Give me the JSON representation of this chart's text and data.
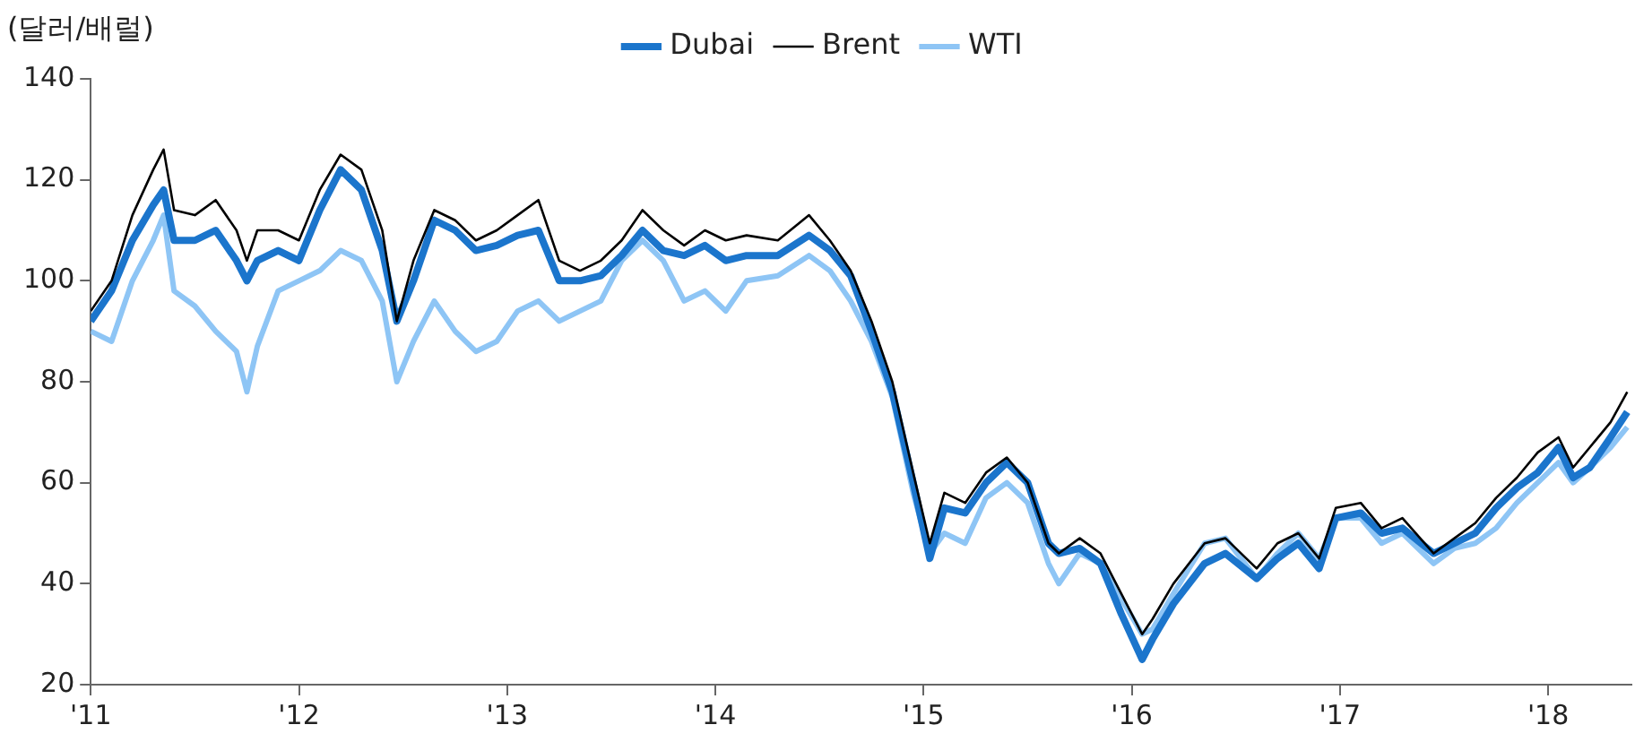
{
  "chart_data": {
    "type": "line",
    "ylabel": "(달러/배럴)",
    "x": [
      2011.0,
      2011.1,
      2011.2,
      2011.3,
      2011.35,
      2011.4,
      2011.5,
      2011.6,
      2011.7,
      2011.75,
      2011.8,
      2011.9,
      2012.0,
      2012.1,
      2012.2,
      2012.3,
      2012.4,
      2012.47,
      2012.55,
      2012.65,
      2012.75,
      2012.85,
      2012.95,
      2013.05,
      2013.15,
      2013.25,
      2013.35,
      2013.45,
      2013.55,
      2013.65,
      2013.75,
      2013.85,
      2013.95,
      2014.05,
      2014.15,
      2014.3,
      2014.45,
      2014.55,
      2014.65,
      2014.75,
      2014.85,
      2014.95,
      2015.03,
      2015.1,
      2015.2,
      2015.3,
      2015.4,
      2015.5,
      2015.6,
      2015.65,
      2015.75,
      2015.85,
      2015.95,
      2016.05,
      2016.1,
      2016.2,
      2016.35,
      2016.45,
      2016.6,
      2016.7,
      2016.8,
      2016.9,
      2016.98,
      2017.1,
      2017.2,
      2017.3,
      2017.45,
      2017.55,
      2017.65,
      2017.75,
      2017.85,
      2017.95,
      2018.05,
      2018.12,
      2018.2,
      2018.3,
      2018.38
    ],
    "series": [
      {
        "name": "Dubai",
        "color": "#1b75cc",
        "values": [
          92,
          98,
          108,
          115,
          118,
          108,
          108,
          110,
          104,
          100,
          104,
          106,
          104,
          114,
          122,
          118,
          106,
          92,
          100,
          112,
          110,
          106,
          107,
          109,
          110,
          100,
          100,
          101,
          105,
          110,
          106,
          105,
          107,
          104,
          105,
          105,
          109,
          106,
          101,
          90,
          78,
          60,
          45,
          55,
          54,
          60,
          64,
          60,
          48,
          46,
          47,
          44,
          34,
          25,
          29,
          36,
          44,
          46,
          41,
          45,
          48,
          43,
          53,
          54,
          50,
          51,
          46,
          48,
          50,
          55,
          59,
          62,
          67,
          61,
          63,
          69,
          74
        ]
      },
      {
        "name": "Brent",
        "color": "#000000",
        "values": [
          94,
          100,
          113,
          122,
          126,
          114,
          113,
          116,
          110,
          104,
          110,
          110,
          108,
          118,
          125,
          122,
          110,
          92,
          104,
          114,
          112,
          108,
          110,
          113,
          116,
          104,
          102,
          104,
          108,
          114,
          110,
          107,
          110,
          108,
          109,
          108,
          113,
          108,
          102,
          92,
          80,
          62,
          48,
          58,
          56,
          62,
          65,
          60,
          48,
          46,
          49,
          46,
          38,
          30,
          33,
          40,
          48,
          49,
          43,
          48,
          50,
          45,
          55,
          56,
          51,
          53,
          46,
          49,
          52,
          57,
          61,
          66,
          69,
          63,
          67,
          72,
          78
        ]
      },
      {
        "name": "WTI",
        "color": "#8ec5f5",
        "values": [
          90,
          88,
          100,
          108,
          113,
          98,
          95,
          90,
          86,
          78,
          87,
          98,
          100,
          102,
          106,
          104,
          96,
          80,
          88,
          96,
          90,
          86,
          88,
          94,
          96,
          92,
          94,
          96,
          104,
          108,
          104,
          96,
          98,
          94,
          100,
          101,
          105,
          102,
          96,
          88,
          77,
          58,
          46,
          50,
          48,
          57,
          60,
          56,
          44,
          40,
          46,
          44,
          37,
          30,
          31,
          38,
          48,
          49,
          41,
          46,
          50,
          45,
          53,
          53,
          48,
          50,
          44,
          47,
          48,
          51,
          56,
          60,
          64,
          60,
          63,
          67,
          71
        ]
      }
    ],
    "xlim": [
      2011,
      2018.4
    ],
    "xticks": [
      {
        "value": 2011,
        "label": "'11"
      },
      {
        "value": 2012,
        "label": "'12"
      },
      {
        "value": 2013,
        "label": "'13"
      },
      {
        "value": 2014,
        "label": "'14"
      },
      {
        "value": 2015,
        "label": "'15"
      },
      {
        "value": 2016,
        "label": "'16"
      },
      {
        "value": 2017,
        "label": "'17"
      },
      {
        "value": 2018,
        "label": "'18"
      }
    ],
    "ylim": [
      20,
      140
    ],
    "yticks": [
      20,
      40,
      60,
      80,
      100,
      120,
      140
    ],
    "grid": false,
    "legend": "top",
    "marker": "none",
    "line_style": "solid"
  }
}
